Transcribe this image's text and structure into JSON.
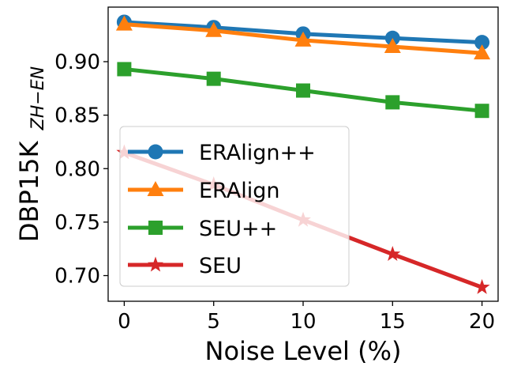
{
  "chart_data": {
    "type": "line",
    "title": "",
    "xlabel": "Noise Level (%)",
    "ylabel": "DBP15K",
    "ylabel_subscript": "ZH−EN",
    "x": [
      0,
      5,
      10,
      15,
      20
    ],
    "xticks": [
      "0",
      "5",
      "10",
      "15",
      "20"
    ],
    "yticks": [
      "0.70",
      "0.75",
      "0.80",
      "0.85",
      "0.90"
    ],
    "xlim": [
      -0.9,
      20.9
    ],
    "ylim": [
      0.676,
      0.951
    ],
    "grid": false,
    "legend_position": "center-left",
    "series": [
      {
        "name": "ERAlign++",
        "color": "#1f77b4",
        "marker": "circle",
        "values": [
          0.937,
          0.932,
          0.926,
          0.922,
          0.918
        ]
      },
      {
        "name": "ERAlign",
        "color": "#ff7f0e",
        "marker": "triangle",
        "values": [
          0.935,
          0.929,
          0.92,
          0.914,
          0.908
        ]
      },
      {
        "name": "SEU++",
        "color": "#2ca02c",
        "marker": "square",
        "values": [
          0.893,
          0.884,
          0.873,
          0.862,
          0.854
        ]
      },
      {
        "name": "SEU",
        "color": "#d62728",
        "marker": "star",
        "values": [
          0.815,
          0.785,
          0.752,
          0.72,
          0.689
        ]
      }
    ]
  }
}
